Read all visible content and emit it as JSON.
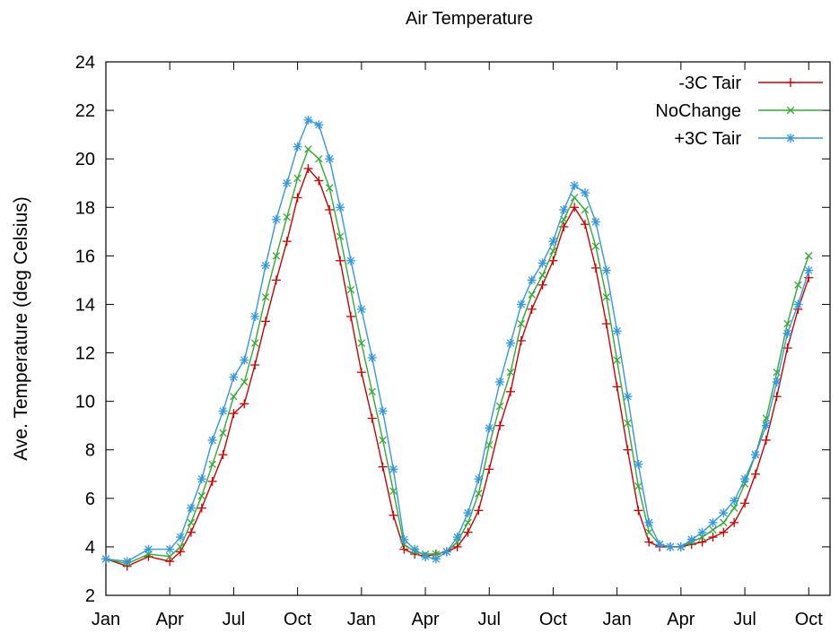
{
  "chart_data": {
    "type": "line",
    "title": "Air Temperature",
    "xlabel": "",
    "ylabel": "Ave. Temperature (deg Celsius)",
    "ylim": [
      2,
      24
    ],
    "yticks": [
      2,
      4,
      6,
      8,
      10,
      12,
      14,
      16,
      18,
      20,
      22,
      24
    ],
    "xlim": [
      0,
      34
    ],
    "xticks": [
      {
        "value": 0,
        "label": "Jan"
      },
      {
        "value": 3,
        "label": "Apr"
      },
      {
        "value": 6,
        "label": "Jul"
      },
      {
        "value": 9,
        "label": "Oct"
      },
      {
        "value": 12,
        "label": "Jan"
      },
      {
        "value": 15,
        "label": "Apr"
      },
      {
        "value": 18,
        "label": "Jul"
      },
      {
        "value": 21,
        "label": "Oct"
      },
      {
        "value": 24,
        "label": "Jan"
      },
      {
        "value": 27,
        "label": "Apr"
      },
      {
        "value": 30,
        "label": "Jul"
      },
      {
        "value": 33,
        "label": "Oct"
      }
    ],
    "grid": false,
    "legend_position": "top-right",
    "series": [
      {
        "name": "-3C Tair",
        "color": "#cc0000",
        "marker": "plus",
        "x": [
          0,
          1,
          2,
          3,
          3.5,
          4,
          4.5,
          5,
          5.5,
          6,
          6.5,
          7,
          7.5,
          8,
          8.5,
          9,
          9.5,
          10,
          10.5,
          11,
          11.5,
          12,
          12.5,
          13,
          13.5,
          14,
          14.5,
          15,
          15.5,
          16,
          16.5,
          17,
          17.5,
          18,
          18.5,
          19,
          19.5,
          20,
          20.5,
          21,
          21.5,
          22,
          22.5,
          23,
          23.5,
          24,
          24.5,
          25,
          25.5,
          26,
          26.5,
          27,
          27.5,
          28,
          28.5,
          29,
          29.5,
          30,
          30.5,
          31,
          31.5,
          32,
          32.5,
          33
        ],
        "values": [
          3.5,
          3.2,
          3.6,
          3.4,
          3.8,
          4.6,
          5.6,
          6.7,
          7.8,
          9.5,
          9.9,
          11.5,
          13.3,
          15.0,
          16.6,
          18.4,
          19.6,
          19.1,
          17.9,
          15.8,
          13.5,
          11.2,
          9.3,
          7.3,
          5.3,
          3.9,
          3.7,
          3.6,
          3.7,
          3.8,
          4.0,
          4.6,
          5.5,
          7.2,
          9.0,
          10.4,
          12.5,
          13.8,
          14.8,
          15.8,
          17.2,
          18.0,
          17.3,
          15.5,
          13.2,
          10.6,
          8.0,
          5.5,
          4.2,
          4.0,
          4.0,
          4.0,
          4.1,
          4.2,
          4.4,
          4.6,
          5.0,
          5.8,
          7.0,
          8.4,
          10.2,
          12.2,
          13.8,
          15.1
        ]
      },
      {
        "name": "NoChange",
        "color": "#33aa33",
        "marker": "cross",
        "x": [
          0,
          1,
          2,
          3,
          3.5,
          4,
          4.5,
          5,
          5.5,
          6,
          6.5,
          7,
          7.5,
          8,
          8.5,
          9,
          9.5,
          10,
          10.5,
          11,
          11.5,
          12,
          12.5,
          13,
          13.5,
          14,
          14.5,
          15,
          15.5,
          16,
          16.5,
          17,
          17.5,
          18,
          18.5,
          19,
          19.5,
          20,
          20.5,
          21,
          21.5,
          22,
          22.5,
          23,
          23.5,
          24,
          24.5,
          25,
          25.5,
          26,
          26.5,
          27,
          27.5,
          28,
          28.5,
          29,
          29.5,
          30,
          30.5,
          31,
          31.5,
          32,
          32.5,
          33
        ],
        "values": [
          3.5,
          3.3,
          3.7,
          3.6,
          4.0,
          5.0,
          6.1,
          7.4,
          8.7,
          10.2,
          10.8,
          12.4,
          14.3,
          16.0,
          17.6,
          19.2,
          20.4,
          20.0,
          18.8,
          16.8,
          14.6,
          12.4,
          10.4,
          8.4,
          6.3,
          4.1,
          3.8,
          3.7,
          3.7,
          3.8,
          4.2,
          5.0,
          6.2,
          8.2,
          9.8,
          11.2,
          13.2,
          14.4,
          15.2,
          16.2,
          17.5,
          18.4,
          17.9,
          16.4,
          14.3,
          11.7,
          9.1,
          6.5,
          4.6,
          4.1,
          4.0,
          4.0,
          4.2,
          4.4,
          4.7,
          5.0,
          5.6,
          6.6,
          7.8,
          9.3,
          11.2,
          13.2,
          14.8,
          16.0
        ]
      },
      {
        "name": "+3C Tair",
        "color": "#3399dd",
        "marker": "star",
        "x": [
          0,
          1,
          2,
          3,
          3.5,
          4,
          4.5,
          5,
          5.5,
          6,
          6.5,
          7,
          7.5,
          8,
          8.5,
          9,
          9.5,
          10,
          10.5,
          11,
          11.5,
          12,
          12.5,
          13,
          13.5,
          14,
          14.5,
          15,
          15.5,
          16,
          16.5,
          17,
          17.5,
          18,
          18.5,
          19,
          19.5,
          20,
          20.5,
          21,
          21.5,
          22,
          22.5,
          23,
          23.5,
          24,
          24.5,
          25,
          25.5,
          26,
          26.5,
          27,
          27.5,
          28,
          28.5,
          29,
          29.5,
          30,
          30.5,
          31,
          31.5,
          32,
          32.5,
          33
        ],
        "values": [
          3.5,
          3.4,
          3.9,
          3.9,
          4.4,
          5.6,
          6.8,
          8.4,
          9.6,
          11.0,
          11.7,
          13.5,
          15.6,
          17.5,
          19.0,
          20.5,
          21.6,
          21.4,
          20.0,
          18.0,
          15.8,
          13.8,
          11.8,
          9.6,
          7.2,
          4.3,
          3.9,
          3.6,
          3.5,
          3.8,
          4.4,
          5.4,
          6.8,
          8.9,
          10.8,
          12.4,
          14.0,
          15.0,
          15.7,
          16.6,
          17.9,
          18.9,
          18.6,
          17.4,
          15.4,
          12.9,
          10.2,
          7.4,
          5.0,
          4.1,
          4.0,
          4.0,
          4.3,
          4.6,
          5.0,
          5.4,
          5.9,
          6.8,
          7.8,
          9.0,
          10.8,
          12.8,
          14.0,
          15.4
        ]
      }
    ]
  }
}
